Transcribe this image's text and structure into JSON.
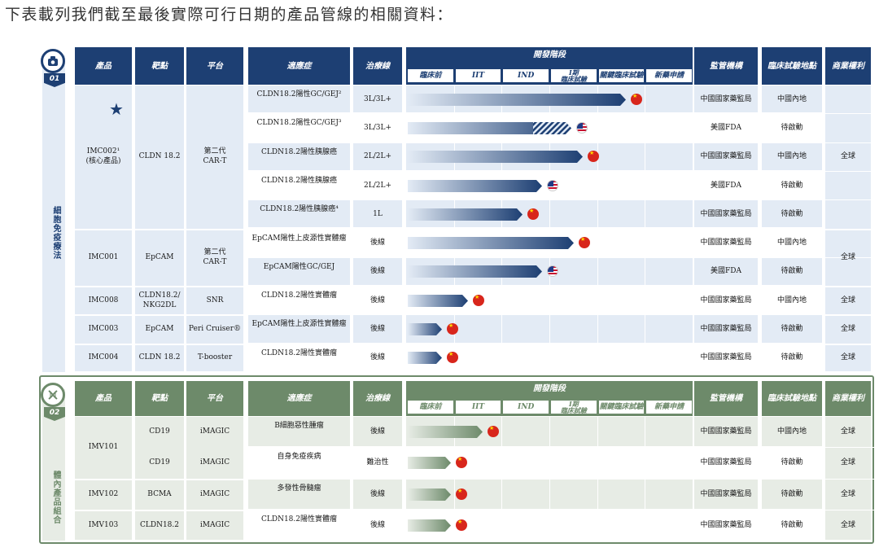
{
  "intro": "下表載列我們截至最後實際可行日期的產品管線的相關資料：",
  "columns": {
    "product": "產品",
    "target": "靶點",
    "platform": "平台",
    "indication": "適應症",
    "line": "治療線",
    "stage_group": "開發階段",
    "regulator": "監管機構",
    "trial_region": "臨床試驗地點",
    "rights": "商業權利"
  },
  "phases": [
    "臨床前",
    "IIT",
    "IND",
    "I期\n臨床試驗",
    "關鍵臨床試驗",
    "新藥申請"
  ],
  "colors": {
    "blue_dark": "#1d3f73",
    "blue_light": "#e3ebf5",
    "green_dark": "#6d8a6a",
    "green_light": "#e7ece5"
  },
  "section1": {
    "label": "細胞免疫療法",
    "number": "01",
    "icon": "cell-therapy-icon",
    "groups": [
      {
        "product": "IMC002¹\n(核心產品)",
        "target": "CLDN 18.2",
        "platform": "第二代\nCAR-T",
        "rights": "全球"
      },
      {
        "product": "IMC001",
        "target": "EpCAM",
        "platform": "第二代\nCAR-T",
        "rights": "全球"
      },
      {
        "product": "IMC008",
        "target": "CLDN18.2/\nNKG2DL",
        "platform": "SNR",
        "rights": "全球"
      },
      {
        "product": "IMC003",
        "target": "EpCAM",
        "platform": "Peri Cruiser®",
        "rights": "全球"
      },
      {
        "product": "IMC004",
        "target": "CLDN 18.2",
        "platform": "T-booster",
        "rights": "全球"
      }
    ],
    "rows": [
      {
        "indication": "CLDN18.2陽性GC/GEJ²",
        "line": "3L/3L+",
        "regulator": "中國國家藥監局",
        "region": "中國內地",
        "progress": 0.76,
        "flag": "cn",
        "hatch": false
      },
      {
        "indication": "CLDN18.2陽性GC/GEJ³",
        "line": "3L/3L+",
        "regulator": "美國FDA",
        "region": "待啟動",
        "progress": 0.57,
        "flag": "us",
        "hatch": true
      },
      {
        "indication": "CLDN18.2陽性胰腺癌",
        "line": "2L/2L+",
        "regulator": "中國國家藥監局",
        "region": "中國內地",
        "progress": 0.61,
        "flag": "cn",
        "hatch": false
      },
      {
        "indication": "CLDN18.2陽性胰腺癌",
        "line": "2L/2L+",
        "regulator": "美國FDA",
        "region": "待啟動",
        "progress": 0.47,
        "flag": "us",
        "hatch": false
      },
      {
        "indication": "CLDN18.2陽性胰腺癌⁴",
        "line": "1L",
        "regulator": "中國國家藥監局",
        "region": "待啟動",
        "progress": 0.4,
        "flag": "cn",
        "hatch": false
      },
      {
        "indication": "EpCAM陽性上皮源性實體瘤",
        "line": "後線",
        "regulator": "中國國家藥監局",
        "region": "中國內地",
        "progress": 0.58,
        "flag": "cn",
        "hatch": false
      },
      {
        "indication": "EpCAM陽性GC/GEJ",
        "line": "後線",
        "regulator": "美國FDA",
        "region": "待啟動",
        "progress": 0.47,
        "flag": "us",
        "hatch": false
      },
      {
        "indication": "CLDN18.2陽性實體瘤",
        "line": "後線",
        "regulator": "中國國家藥監局",
        "region": "中國內地",
        "progress": 0.21,
        "flag": "cn",
        "hatch": false
      },
      {
        "indication": "EpCAM陽性上皮源性實體瘤",
        "line": "後線",
        "regulator": "中國國家藥監局",
        "region": "待啟動",
        "progress": 0.12,
        "flag": "cn",
        "hatch": false
      },
      {
        "indication": "CLDN18.2陽性實體瘤",
        "line": "後線",
        "regulator": "中國國家藥監局",
        "region": "待啟動",
        "progress": 0.12,
        "flag": "cn",
        "hatch": false
      }
    ]
  },
  "section2": {
    "label": "體內產品組合",
    "number": "02",
    "icon": "dna-icon",
    "groups": [
      {
        "product": "IMV101"
      },
      {
        "product": "IMV102"
      },
      {
        "product": "IMV103"
      }
    ],
    "rows": [
      {
        "target": "CD19",
        "platform": "iMAGIC",
        "indication": "B細胞惡性腫瘤",
        "line": "後線",
        "regulator": "中國國家藥監局",
        "region": "中國內地",
        "rights": "全球",
        "progress": 0.26,
        "flag": "cn"
      },
      {
        "target": "CD19",
        "platform": "iMAGIC",
        "indication": "自身免疫疾病",
        "line": "難治性",
        "regulator": "中國國家藥監局",
        "region": "待啟動",
        "rights": "全球",
        "progress": 0.15,
        "flag": "cn"
      },
      {
        "target": "BCMA",
        "platform": "iMAGIC",
        "indication": "多發性骨髓瘤",
        "line": "後線",
        "regulator": "中國國家藥監局",
        "region": "待啟動",
        "rights": "全球",
        "progress": 0.15,
        "flag": "cn"
      },
      {
        "target": "CLDN18.2",
        "platform": "iMAGIC",
        "indication": "CLDN18.2陽性實體瘤",
        "line": "後線",
        "regulator": "中國國家藥監局",
        "region": "待啟動",
        "rights": "全球",
        "progress": 0.15,
        "flag": "cn"
      }
    ]
  }
}
